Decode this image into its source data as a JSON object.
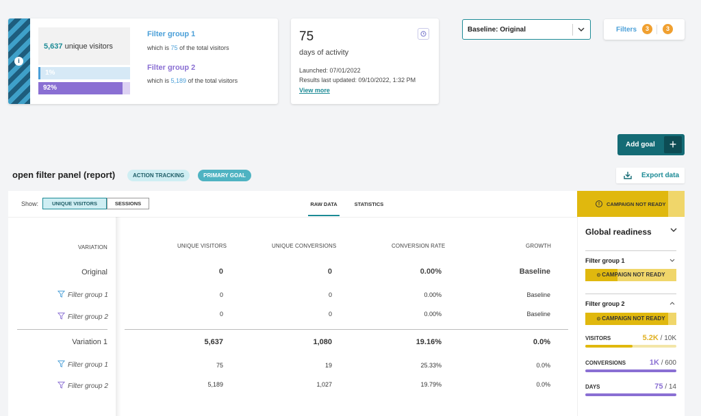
{
  "filters_card": {
    "total_visitors_value": "5,637",
    "total_visitors_label": "unique visitors",
    "group1": {
      "title": "Filter group 1",
      "prefix": "which is",
      "value": "75",
      "suffix": "of the total visitors",
      "bar_label": "1%",
      "share": 0.01
    },
    "group2": {
      "title": "Filter group 2",
      "prefix": "which is",
      "value": "5,189",
      "suffix": "of the total visitors",
      "bar_label": "92%",
      "share": 0.92
    }
  },
  "activity_card": {
    "days_value": "75",
    "days_label": "days of activity",
    "launched": "Launched: 07/01/2022",
    "updated": "Results last updated: 09/10/2022, 1:32 PM",
    "view_more": "View more"
  },
  "baseline_select": {
    "value": "Baseline: Original"
  },
  "filters_button": {
    "label": "Filters",
    "badge1": "3",
    "badge2": "3"
  },
  "add_goal": {
    "label": "Add goal",
    "icon": "+"
  },
  "goal": {
    "title": "open filter panel (report)",
    "tag1": "ACTION TRACKING",
    "tag2": "PRIMARY GOAL",
    "export_label": "Export data"
  },
  "table": {
    "show_label": "Show:",
    "toggle_unique": "UNIQUE VISITORS",
    "toggle_sessions": "SESSIONS",
    "tab_raw": "RAW DATA",
    "tab_stats": "STATISTICS",
    "headers": {
      "variation": "VARIATION",
      "unique_visitors": "UNIQUE VISITORS",
      "unique_conversions": "UNIQUE CONVERSIONS",
      "conversion_rate": "CONVERSION RATE",
      "growth": "GROWTH"
    },
    "rows": [
      {
        "label": "Original",
        "visitors": "0",
        "conversions": "0",
        "rate": "0.00%",
        "growth": "Baseline"
      },
      {
        "label": "Filter group 1",
        "visitors": "0",
        "conversions": "0",
        "rate": "0.00%",
        "growth": "Baseline"
      },
      {
        "label": "Filter group 2",
        "visitors": "0",
        "conversions": "0",
        "rate": "0.00%",
        "growth": "Baseline"
      },
      {
        "label": "Variation 1",
        "visitors": "5,637",
        "conversions": "1,080",
        "rate": "19.16%",
        "growth": "0.0%"
      },
      {
        "label": "Filter group 1",
        "visitors": "75",
        "conversions": "19",
        "rate": "25.33%",
        "growth": "0.0%"
      },
      {
        "label": "Filter group 2",
        "visitors": "5,189",
        "conversions": "1,027",
        "rate": "19.79%",
        "growth": "0.0%"
      }
    ]
  },
  "readiness": {
    "banner": "CAMPAIGN NOT READY",
    "title": "Global readiness",
    "group1_title": "Filter group 1",
    "group1_status": "CAMPAIGN NOT READY",
    "group2_title": "Filter group 2",
    "group2_status": "CAMPAIGN NOT READY",
    "visitors": {
      "label": "VISITORS",
      "value": "5.2K",
      "target": "/ 10K",
      "progress": 0.52
    },
    "conversions": {
      "label": "CONVERSIONS",
      "value": "1K",
      "target": "/ 600",
      "progress": 1.0
    },
    "days": {
      "label": "DAYS",
      "value": "75",
      "target": "/ 14",
      "progress": 1.0
    }
  },
  "colors": {
    "accent": "#146b75",
    "blue": "#4a9fd8",
    "purple": "#8a6fd3",
    "warning": "#e0b80e",
    "badge": "#f0a030"
  }
}
